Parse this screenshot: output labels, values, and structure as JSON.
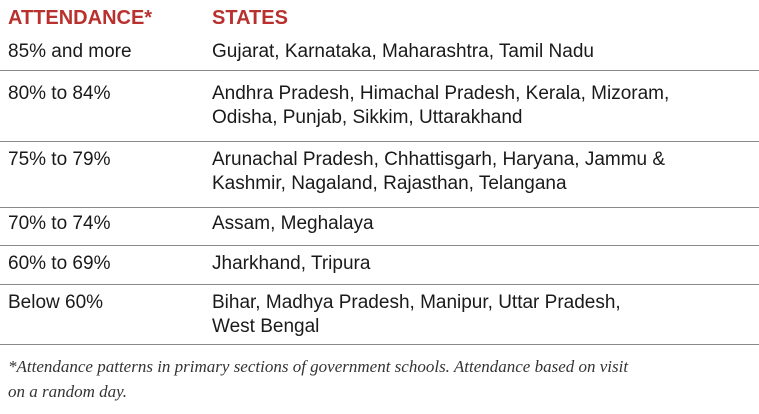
{
  "table": {
    "header": [
      "ATTENDANCE*",
      "STATES"
    ],
    "rows": [
      {
        "attendance": "85% and more",
        "states": [
          "Gujarat, Karnataka, Maharashtra, Tamil Nadu"
        ]
      },
      {
        "attendance": "80% to 84%",
        "states": [
          "Andhra Pradesh, Himachal Pradesh, Kerala, Mizoram,",
          "Odisha, Punjab, Sikkim, Uttarakhand"
        ]
      },
      {
        "attendance": "75% to 79%",
        "states": [
          "Arunachal Pradesh, Chhattisgarh, Haryana, Jammu &",
          "Kashmir, Nagaland, Rajasthan, Telangana"
        ]
      },
      {
        "attendance": "70% to 74%",
        "states": [
          "Assam, Meghalaya"
        ]
      },
      {
        "attendance": "60% to 69%",
        "states": [
          "Jharkhand, Tripura"
        ]
      },
      {
        "attendance": "Below 60%",
        "states": [
          "Bihar, Madhya Pradesh, Manipur, Uttar Pradesh,",
          "West Bengal"
        ]
      }
    ]
  },
  "footnote": [
    "*Attendance patterns in primary sections of government schools. Attendance based on visit",
    "on a random day."
  ]
}
